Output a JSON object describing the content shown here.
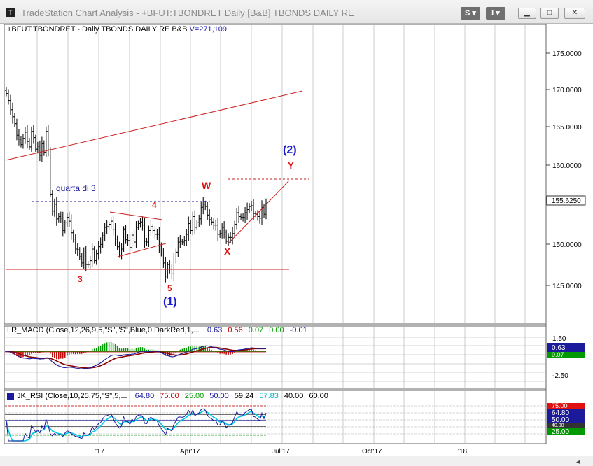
{
  "window": {
    "title": "TradeStation Chart Analysis - +BFUT:TBONDRET Daily [B&B] TBONDS DAILY RE",
    "button_s": "S",
    "button_i": "I"
  },
  "header": {
    "symbol_line": "+BFUT:TBONDRET - Daily  TBONDS DAILY RE  B&B",
    "volume": "V=271,109"
  },
  "colors": {
    "grid": "#a9a9a9",
    "red": "#cc1f1f",
    "blue_dashed": "#1a1a9a",
    "wave_blue": "#1a1ad0",
    "label_red": "#e01010",
    "price_bars": "#111111",
    "macd_hist_green": "#009900",
    "macd_hist_red": "#c00000",
    "rsi_cyan": "#00c8e0"
  },
  "price_axis": {
    "ticks": [
      "175.0000",
      "170.0000",
      "165.0000",
      "160.0000",
      "150.0000",
      "145.0000"
    ],
    "last_price": "155.6250"
  },
  "date_axis": {
    "ticks": [
      "'17",
      "Apr'17",
      "Jul'17",
      "Oct'17",
      "'18"
    ]
  },
  "annotations": {
    "quarta": "quarta di 3",
    "w": "W",
    "x": "X",
    "y": "Y",
    "four": "4",
    "three": "3",
    "five": "5",
    "wave1": "(1)",
    "wave2": "(2)"
  },
  "macd": {
    "label": "LR_MACD (Close,12,26,9,5,\"S\",\"S\",Blue,0,DarkRed,1,...",
    "values": [
      {
        "text": "0.63",
        "color": "#1a1a9a"
      },
      {
        "text": "0.56",
        "color": "#c00000"
      },
      {
        "text": "0.07",
        "color": "#009900"
      },
      {
        "text": "0.00",
        "color": "#009900"
      },
      {
        "text": "-0.01",
        "color": "#1a1a9a"
      }
    ],
    "axis_ticks": [
      "1.50",
      "-2.50"
    ],
    "badge_blue": "0.63",
    "badge_green": "0.07"
  },
  "rsi": {
    "label": "JK_RSI (Close,10,25,75,\"S\",5,...",
    "values": [
      {
        "text": "64.80",
        "color": "#1a1a9a"
      },
      {
        "text": "75.00",
        "color": "#c00000"
      },
      {
        "text": "25.00",
        "color": "#009900"
      },
      {
        "text": "50.00",
        "color": "#1a1a9a"
      },
      {
        "text": "59.24",
        "color": "#000000"
      },
      {
        "text": "57.83",
        "color": "#00b0c8"
      },
      {
        "text": "40.00",
        "color": "#000000"
      },
      {
        "text": "60.00",
        "color": "#000000"
      }
    ],
    "badges": [
      {
        "text": "75.00",
        "color": "#e01010"
      },
      {
        "text": "64.80",
        "color": "#1a1a9a"
      },
      {
        "text": "50.00",
        "color": "#1a1a9a"
      },
      {
        "text": "40.00",
        "color": "#333333"
      },
      {
        "text": "25.00",
        "color": "#009900"
      }
    ]
  },
  "chart_data": {
    "type": "candlestick-ohlc",
    "series": [
      {
        "name": "+BFUT:TBONDRET",
        "close": [
          169.8,
          168.9,
          167.7,
          166.8,
          165.9,
          164.4,
          163.9,
          163.2,
          164.0,
          164.8,
          163.6,
          162.9,
          164.9,
          164.1,
          162.6,
          163.0,
          161.8,
          163.3,
          162.2,
          164.9,
          162.5,
          156.8,
          154.6,
          155.5,
          153.6,
          153.9,
          153.7,
          152.1,
          153.1,
          153.8,
          153.3,
          151.8,
          151.0,
          149.7,
          149.6,
          148.7,
          147.9,
          149.2,
          147.7,
          147.7,
          148.2,
          149.7,
          148.2,
          149.1,
          150.0,
          150.3,
          151.4,
          152.5,
          152.6,
          152.9,
          153.3,
          152.2,
          151.0,
          150.0,
          149.2,
          149.7,
          152.3,
          150.9,
          150.8,
          149.9,
          151.5,
          150.6,
          152.5,
          153.0,
          153.2,
          152.8,
          150.7,
          150.6,
          152.1,
          152.6,
          152.1,
          151.6,
          151.6,
          150.1,
          149.2,
          147.9,
          146.2,
          147.7,
          147.1,
          146.5,
          148.3,
          149.3,
          150.6,
          150.7,
          150.6,
          150.8,
          151.6,
          153.0,
          152.1,
          153.9,
          152.5,
          153.1,
          153.6,
          155.1,
          155.5,
          155.2,
          154.1,
          153.5,
          153.2,
          152.8,
          152.8,
          151.6,
          151.7,
          152.5,
          151.9,
          150.7,
          151.2,
          151.2,
          151.7,
          152.9,
          154.4,
          153.9,
          153.8,
          153.8,
          154.4,
          154.8,
          155.2,
          155.3,
          154.3,
          154.2,
          153.9,
          153.7,
          155.1,
          154.2,
          155.6
        ]
      }
    ],
    "levels": {
      "horizontal_support": 147.0,
      "dashed_resistance_blue": 155.4,
      "dashed_target_red": 158.4
    },
    "price_range": [
      143.0,
      179.0
    ],
    "x_ticks": [
      "'17",
      "Apr'17",
      "Jul'17",
      "Oct'17",
      "'18"
    ]
  }
}
